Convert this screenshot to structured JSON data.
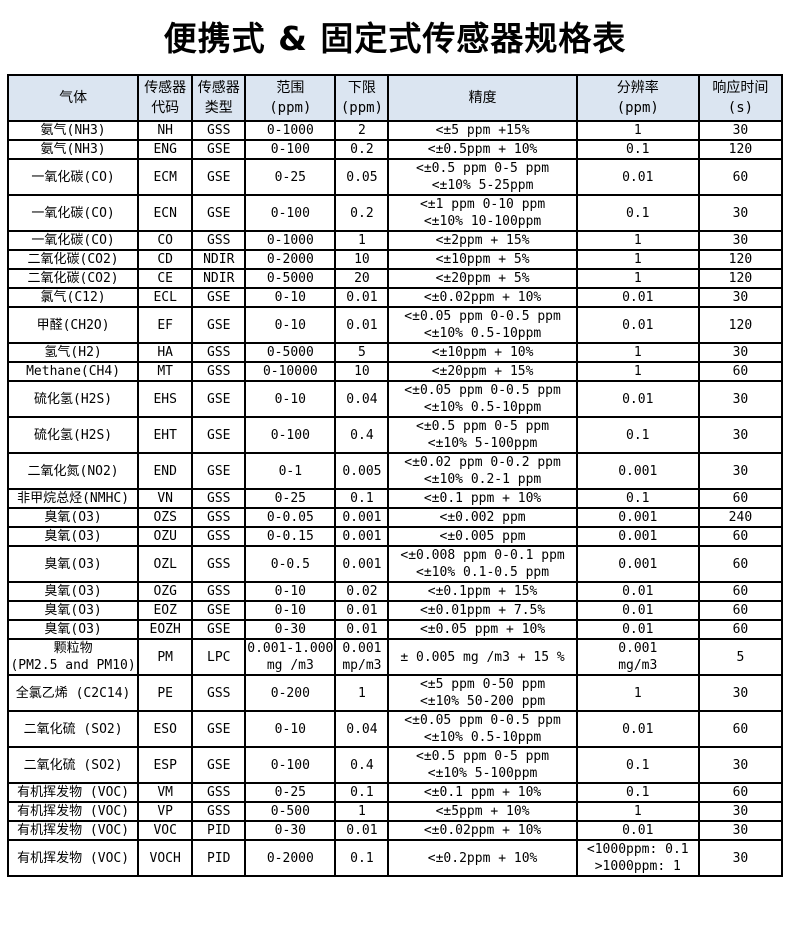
{
  "page": {
    "title": "便携式 & 固定式传感器规格表"
  },
  "colors": {
    "page_bg": "#ffffff",
    "header_bg": "#dbe5f1",
    "border": "#000000",
    "text": "#000000"
  },
  "table": {
    "headers": [
      "气体",
      "传感器\n代码",
      "传感器\n类型",
      "范围\n(ppm)",
      "下限\n(ppm)",
      "精度",
      "分辨率\n(ppm)",
      "响应时间\n(s)"
    ],
    "rows": [
      [
        "氨气(NH3)",
        "NH",
        "GSS",
        "0-1000",
        "2",
        "<±5 ppm +15%",
        "1",
        "30"
      ],
      [
        "氨气(NH3)",
        "ENG",
        "GSE",
        "0-100",
        "0.2",
        "<±0.5ppm + 10%",
        "0.1",
        "120"
      ],
      [
        "一氧化碳(CO)",
        "ECM",
        "GSE",
        "0-25",
        "0.05",
        "<±0.5 ppm 0-5 ppm\n<±10% 5-25ppm",
        "0.01",
        "60"
      ],
      [
        "一氧化碳(CO)",
        "ECN",
        "GSE",
        "0-100",
        "0.2",
        "<±1 ppm 0-10 ppm\n<±10% 10-100ppm",
        "0.1",
        "30"
      ],
      [
        "一氧化碳(CO)",
        "CO",
        "GSS",
        "0-1000",
        "1",
        "<±2ppm + 15%",
        "1",
        "30"
      ],
      [
        "二氧化碳(CO2)",
        "CD",
        "NDIR",
        "0-2000",
        "10",
        "<±10ppm + 5%",
        "1",
        "120"
      ],
      [
        "二氧化碳(CO2)",
        "CE",
        "NDIR",
        "0-5000",
        "20",
        "<±20ppm + 5%",
        "1",
        "120"
      ],
      [
        "氯气(C12)",
        "ECL",
        "GSE",
        "0-10",
        "0.01",
        "<±0.02ppm + 10%",
        "0.01",
        "30"
      ],
      [
        "甲醛(CH2O)",
        "EF",
        "GSE",
        "0-10",
        "0.01",
        "<±0.05 ppm 0-0.5 ppm\n<±10% 0.5-10ppm",
        "0.01",
        "120"
      ],
      [
        "氢气(H2)",
        "HA",
        "GSS",
        "0-5000",
        "5",
        "<±10ppm + 10%",
        "1",
        "30"
      ],
      [
        "Methane(CH4)",
        "MT",
        "GSS",
        "0-10000",
        "10",
        "<±20ppm + 15%",
        "1",
        "60"
      ],
      [
        "硫化氢(H2S)",
        "EHS",
        "GSE",
        "0-10",
        "0.04",
        "<±0.05 ppm 0-0.5 ppm\n<±10% 0.5-10ppm",
        "0.01",
        "30"
      ],
      [
        "硫化氢(H2S)",
        "EHT",
        "GSE",
        "0-100",
        "0.4",
        "<±0.5 ppm 0-5 ppm\n<±10% 5-100ppm",
        "0.1",
        "30"
      ],
      [
        "二氧化氮(NO2)",
        "END",
        "GSE",
        "0-1",
        "0.005",
        "<±0.02 ppm 0-0.2 ppm\n<±10% 0.2-1 ppm",
        "0.001",
        "30"
      ],
      [
        "非甲烷总烃(NMHC)",
        "VN",
        "GSS",
        "0-25",
        "0.1",
        "<±0.1 ppm + 10%",
        "0.1",
        "60"
      ],
      [
        "臭氧(O3)",
        "OZS",
        "GSS",
        "0-0.05",
        "0.001",
        "<±0.002 ppm",
        "0.001",
        "240"
      ],
      [
        "臭氧(O3)",
        "OZU",
        "GSS",
        "0-0.15",
        "0.001",
        "<±0.005 ppm",
        "0.001",
        "60"
      ],
      [
        "臭氧(O3)",
        "OZL",
        "GSS",
        "0-0.5",
        "0.001",
        "<±0.008 ppm 0-0.1 ppm\n<±10% 0.1-0.5 ppm",
        "0.001",
        "60"
      ],
      [
        "臭氧(O3)",
        "OZG",
        "GSS",
        "0-10",
        "0.02",
        "<±0.1ppm + 15%",
        "0.01",
        "60"
      ],
      [
        "臭氧(O3)",
        "EOZ",
        "GSE",
        "0-10",
        "0.01",
        "<±0.01ppm + 7.5%",
        "0.01",
        "60"
      ],
      [
        "臭氧(O3)",
        "EOZH",
        "GSE",
        "0-30",
        "0.01",
        "<±0.05 ppm + 10%",
        "0.01",
        "60"
      ],
      [
        "颗粒物\n(PM2.5 and PM10)",
        "PM",
        "LPC",
        "0.001-1.000\nmg /m3",
        "0.001\nmp/m3",
        "±  0.005 mg /m3 + 15 %",
        "0.001\nmg/m3",
        "5"
      ],
      [
        "全氯乙烯 (C2C14)",
        "PE",
        "GSS",
        "0-200",
        "1",
        "<±5 ppm 0-50 ppm\n<±10% 50-200 ppm",
        "1",
        "30"
      ],
      [
        "二氧化硫 (SO2)",
        "ESO",
        "GSE",
        "0-10",
        "0.04",
        "<±0.05 ppm 0-0.5 ppm\n<±10% 0.5-10ppm",
        "0.01",
        "60"
      ],
      [
        "二氧化硫 (SO2)",
        "ESP",
        "GSE",
        "0-100",
        "0.4",
        "<±0.5 ppm 0-5 ppm\n<±10% 5-100ppm",
        "0.1",
        "30"
      ],
      [
        "有机挥发物 (VOC)",
        "VM",
        "GSS",
        "0-25",
        "0.1",
        "<±0.1 ppm + 10%",
        "0.1",
        "60"
      ],
      [
        "有机挥发物 (VOC)",
        "VP",
        "GSS",
        "0-500",
        "1",
        "<±5ppm + 10%",
        "1",
        "30"
      ],
      [
        "有机挥发物 (VOC)",
        "VOC",
        "PID",
        "0-30",
        "0.01",
        "<±0.02ppm + 10%",
        "0.01",
        "30"
      ],
      [
        "有机挥发物 (VOC)",
        "VOCH",
        "PID",
        "0-2000",
        "0.1",
        "<±0.2ppm + 10%",
        "<1000ppm: 0.1\n>1000ppm: 1",
        "30"
      ]
    ]
  }
}
